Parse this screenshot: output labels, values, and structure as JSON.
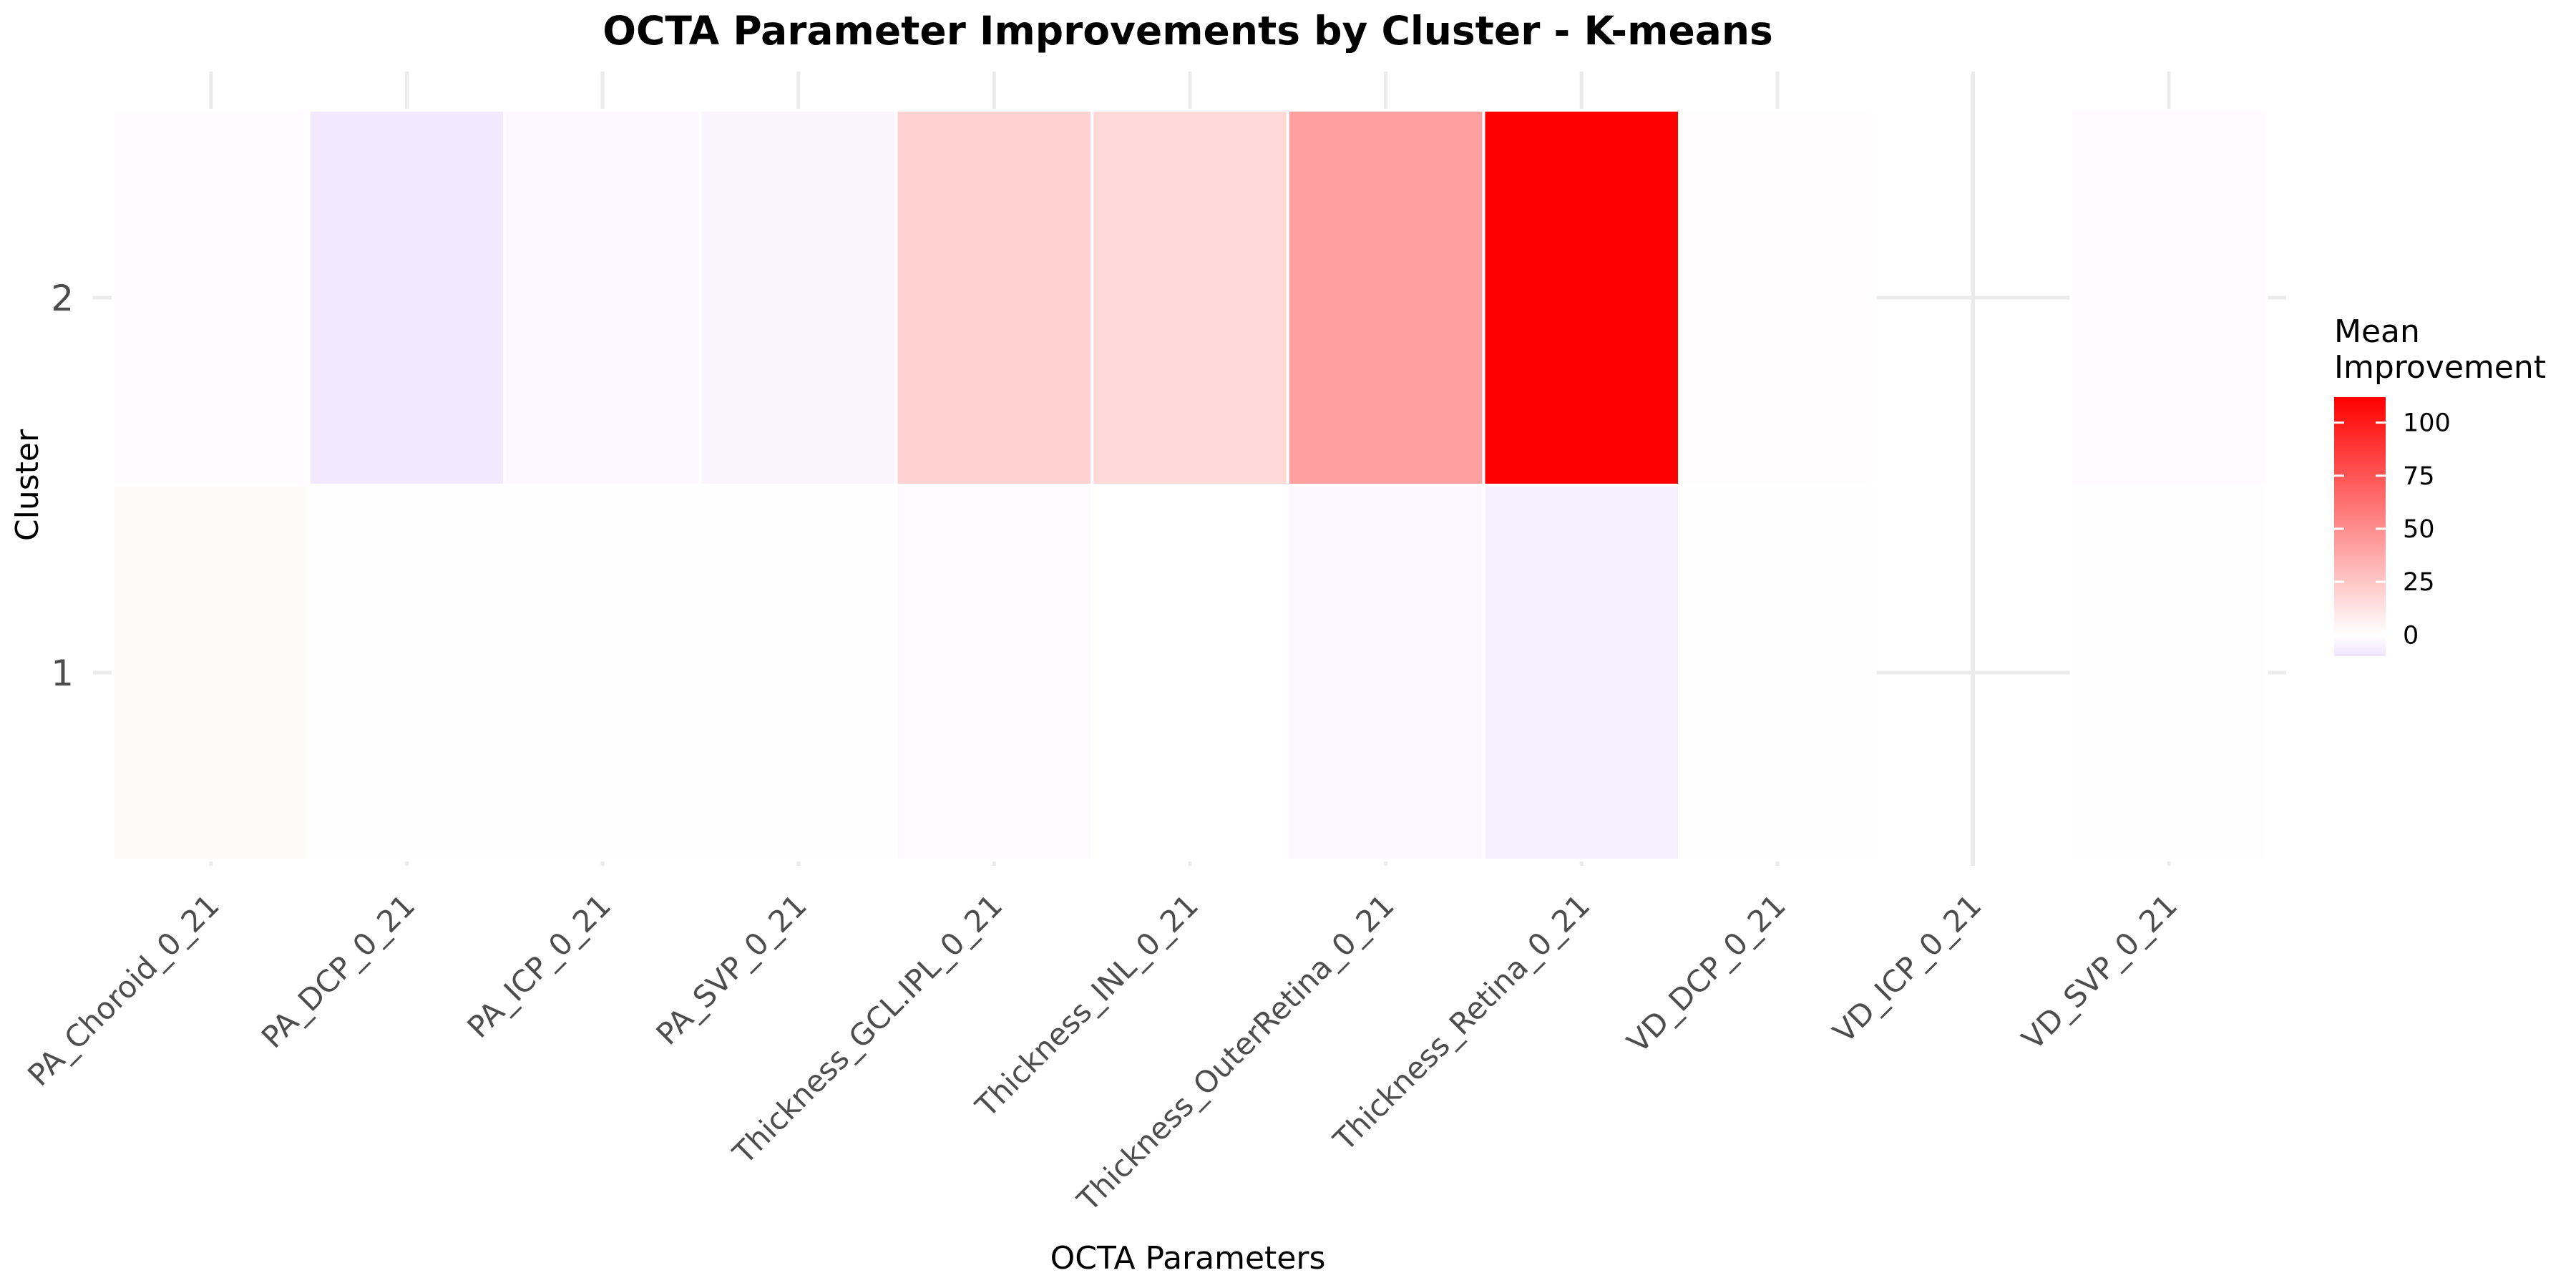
{
  "chart_data": {
    "type": "heatmap",
    "title": "OCTA Parameter Improvements by Cluster - K-means",
    "xlabel": "OCTA Parameters",
    "ylabel": "Cluster",
    "categories": [
      "PA_Choroid_0_21",
      "PA_DCP_0_21",
      "PA_ICP_0_21",
      "PA_SVP_0_21",
      "Thickness_GCL.IPL_0_21",
      "Thickness_INL_0_21",
      "Thickness_OuterRetina_0_21",
      "Thickness_Retina_0_21",
      "VD_DCP_0_21",
      "VD_ICP_0_21",
      "VD_SVP_0_21"
    ],
    "clusters": [
      "1",
      "2"
    ],
    "values": {
      "1": [
        2,
        0.5,
        0.5,
        0.5,
        -1.5,
        0,
        -3,
        -6,
        0.5,
        null,
        0.5
      ],
      "2": [
        -1,
        -8,
        -2.5,
        -4,
        20,
        17,
        42,
        112,
        1,
        null,
        -1.5
      ]
    },
    "legend": {
      "title_lines": [
        "Mean",
        "Improvement"
      ],
      "ticks": [
        0,
        25,
        50,
        75,
        100
      ],
      "range": [
        -10,
        112
      ],
      "position": "right"
    },
    "colors": {
      "low": "#f0e4ff",
      "mid": "#ffffff",
      "high": "#ff0000"
    },
    "grid": true
  }
}
